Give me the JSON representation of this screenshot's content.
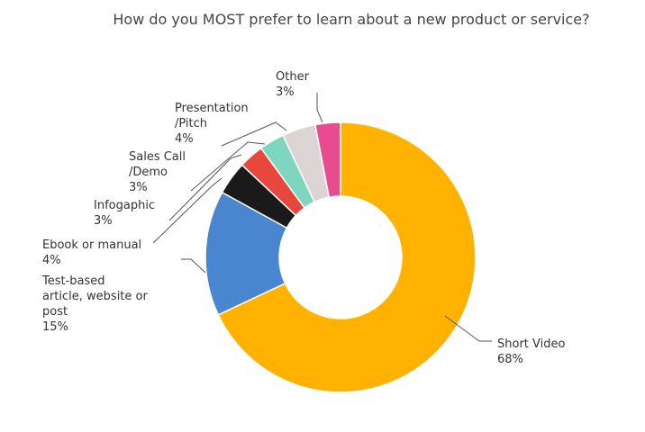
{
  "chart_data": {
    "type": "pie",
    "title": "How do you MOST prefer to learn about a new product or service?",
    "donut": true,
    "slices": [
      {
        "label": "Short Video",
        "label_lines": [
          "Short Video"
        ],
        "pct_text": "68%",
        "value": 68,
        "color": "#FFB300"
      },
      {
        "label": "Test-based article, website or post",
        "label_lines": [
          "Test-based",
          "article, website or",
          "post"
        ],
        "pct_text": "15%",
        "value": 15,
        "color": "#4A86CF"
      },
      {
        "label": "Ebook or manual",
        "label_lines": [
          "Ebook or manual"
        ],
        "pct_text": "4%",
        "value": 4,
        "color": "#1A1A1A"
      },
      {
        "label": "Infogaphic",
        "label_lines": [
          "Infogaphic"
        ],
        "pct_text": "3%",
        "value": 3,
        "color": "#E8473D"
      },
      {
        "label": "Sales Call /Demo",
        "label_lines": [
          "Sales Call",
          "/Demo"
        ],
        "pct_text": "3%",
        "value": 3,
        "color": "#7ED6BE"
      },
      {
        "label": "Presentation /Pitch",
        "label_lines": [
          "Presentation",
          "/Pitch"
        ],
        "pct_text": "4%",
        "value": 4,
        "color": "#DDD5D5"
      },
      {
        "label": "Other",
        "label_lines": [
          "Other"
        ],
        "pct_text": "3%",
        "value": 3,
        "color": "#E84C8E"
      }
    ]
  }
}
